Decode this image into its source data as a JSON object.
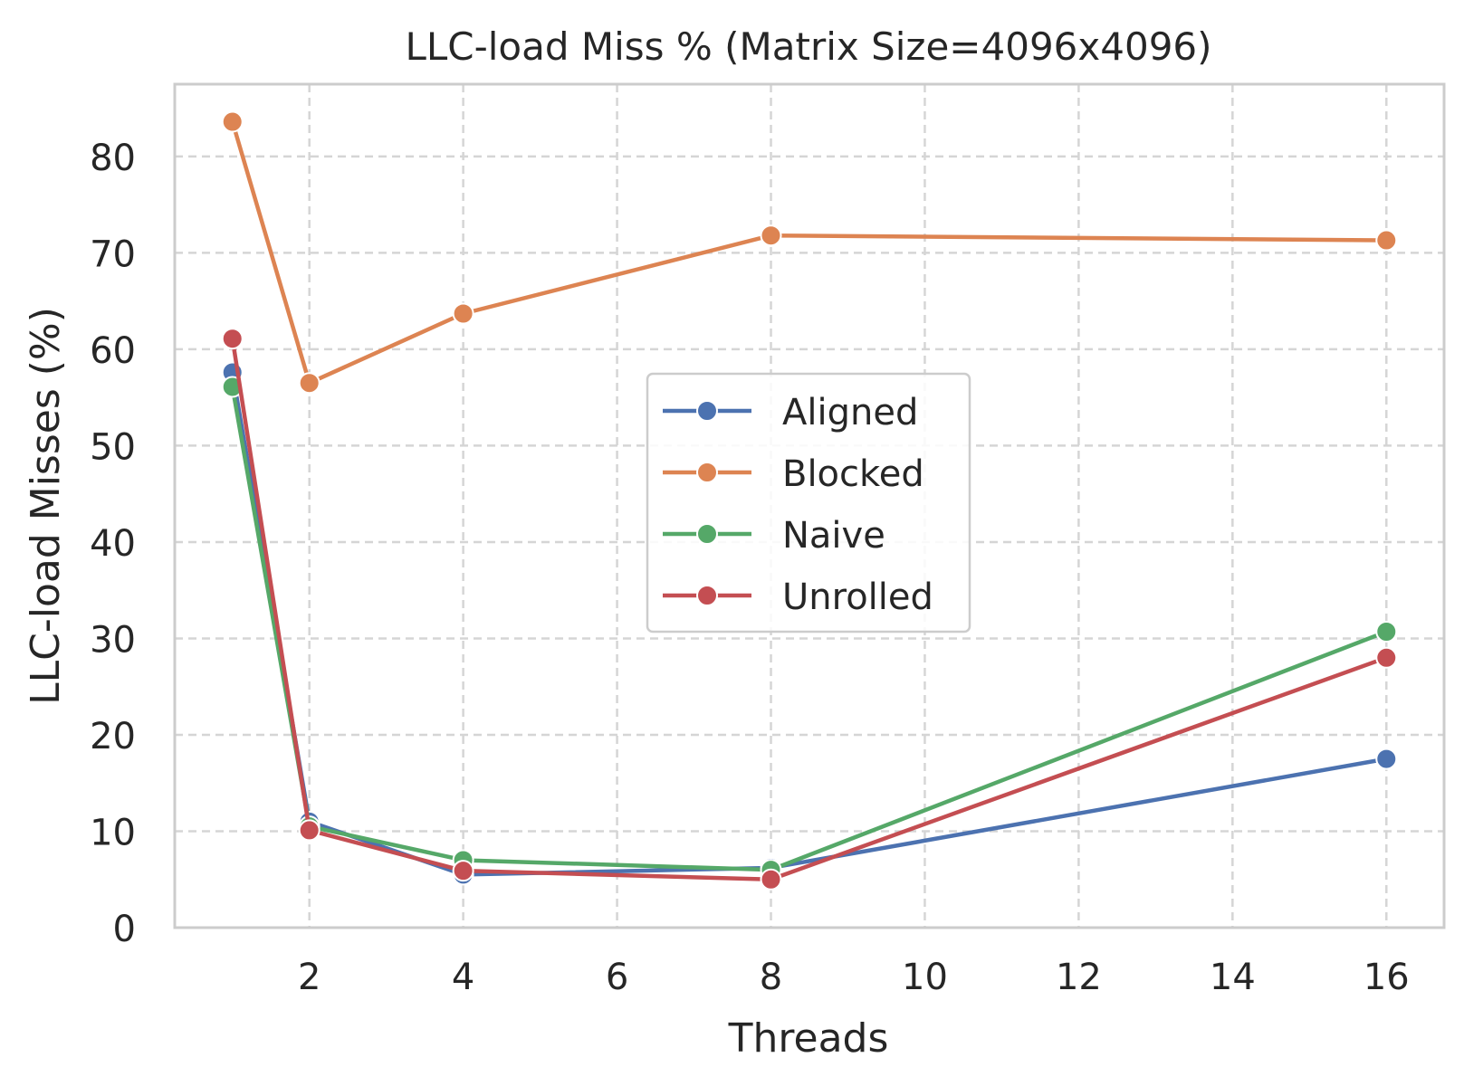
{
  "chart_data": {
    "type": "line",
    "title": "LLC-load Miss % (Matrix Size=4096x4096)",
    "xlabel": "Threads",
    "ylabel": "LLC-load Misses (%)",
    "x": [
      1,
      2,
      4,
      8,
      16
    ],
    "xlim": [
      0.25,
      16.75
    ],
    "ylim": [
      0,
      87.5
    ],
    "xticks": [
      2,
      4,
      6,
      8,
      10,
      12,
      14,
      16
    ],
    "yticks": [
      0,
      10,
      20,
      30,
      40,
      50,
      60,
      70,
      80
    ],
    "grid": true,
    "legend_position": "center",
    "series": [
      {
        "name": "Aligned",
        "color": "#4c72b0",
        "values": [
          57.6,
          11.0,
          5.5,
          6.2,
          17.5
        ]
      },
      {
        "name": "Blocked",
        "color": "#dd8452",
        "values": [
          83.6,
          56.5,
          63.7,
          71.8,
          71.3
        ]
      },
      {
        "name": "Naive",
        "color": "#55a868",
        "values": [
          56.1,
          10.5,
          7.0,
          6.0,
          30.7
        ]
      },
      {
        "name": "Unrolled",
        "color": "#c44e52",
        "values": [
          61.1,
          10.1,
          5.9,
          5.0,
          28.0
        ]
      }
    ]
  }
}
